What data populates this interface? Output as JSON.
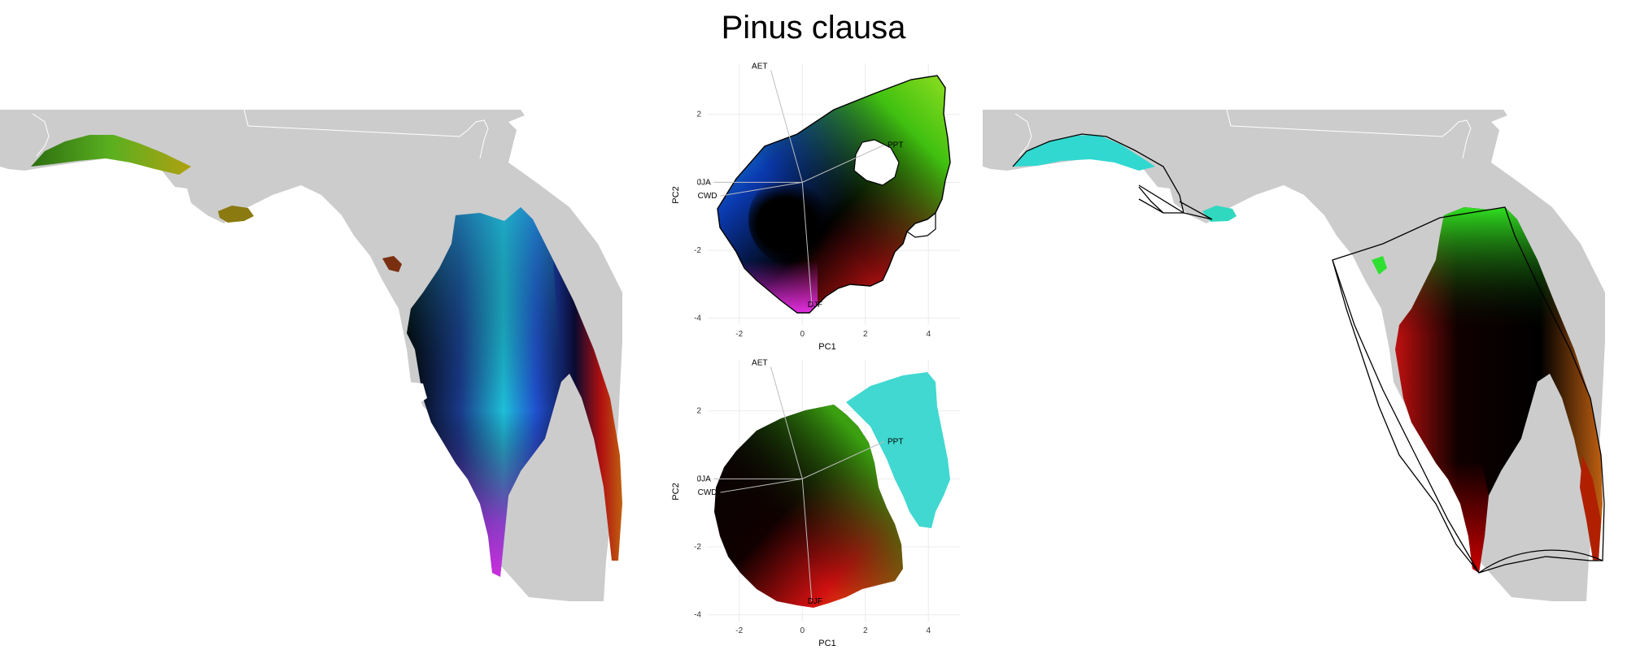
{
  "title": "Pinus clausa",
  "colors": {
    "land": "#cccccc",
    "border": "#ffffff",
    "grid": "#ebebeb",
    "vector": "#bdbdbd",
    "hull": "#000000"
  },
  "chart_data": [
    {
      "type": "map",
      "name": "left-map",
      "description_note": "Climate-space colored range of Pinus clausa over Florida"
    },
    {
      "type": "scatter",
      "name": "pca-top",
      "xlabel": "PC1",
      "ylabel": "PC2",
      "xlim": [
        -3,
        5
      ],
      "ylim": [
        -4.2,
        3.5
      ],
      "xticks": [
        -2,
        0,
        2,
        4
      ],
      "yticks": [
        -4,
        -2,
        0,
        2
      ],
      "vectors": [
        {
          "label": "AET",
          "x": -1.0,
          "y": 3.3
        },
        {
          "label": "JJA",
          "x": -2.8,
          "y": 0.0
        },
        {
          "label": "CWD",
          "x": -2.6,
          "y": -0.4
        },
        {
          "label": "PPT",
          "x": 2.6,
          "y": 1.1
        },
        {
          "label": "DJF",
          "x": 0.3,
          "y": -3.6
        }
      ]
    },
    {
      "type": "scatter",
      "name": "pca-bottom",
      "xlabel": "PC1",
      "ylabel": "PC2",
      "xlim": [
        -3,
        5
      ],
      "ylim": [
        -4.2,
        3.5
      ],
      "xticks": [
        -2,
        0,
        2,
        4
      ],
      "yticks": [
        -4,
        -2,
        0,
        2
      ],
      "vectors": [
        {
          "label": "AET",
          "x": -1.0,
          "y": 3.3
        },
        {
          "label": "JJA",
          "x": -2.8,
          "y": 0.0
        },
        {
          "label": "CWD",
          "x": -2.6,
          "y": -0.4
        },
        {
          "label": "PPT",
          "x": 2.6,
          "y": 1.1
        },
        {
          "label": "DJF",
          "x": 0.3,
          "y": -3.6
        }
      ]
    },
    {
      "type": "map",
      "name": "right-map",
      "description_note": "Predicted climate-space coloring within hull over Florida"
    }
  ]
}
